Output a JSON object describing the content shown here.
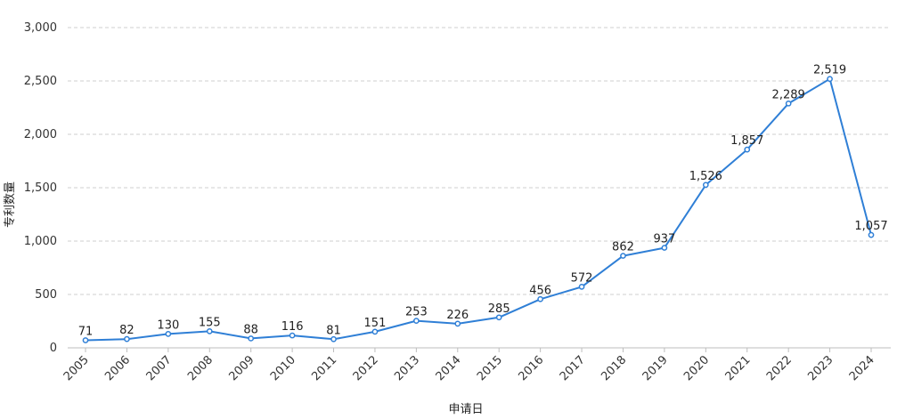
{
  "chart_data": {
    "type": "line",
    "title": "",
    "xlabel": "申请日",
    "ylabel": "专利数量",
    "ylim": [
      0,
      3000
    ],
    "yticks": [
      0,
      500,
      1000,
      1500,
      2000,
      2500,
      3000
    ],
    "ytick_labels": [
      "0",
      "500",
      "1,000",
      "1,500",
      "2,000",
      "2,500",
      "3,000"
    ],
    "grid": true,
    "x": [
      "2005",
      "2006",
      "2007",
      "2008",
      "2009",
      "2010",
      "2011",
      "2012",
      "2013",
      "2014",
      "2015",
      "2016",
      "2017",
      "2018",
      "2019",
      "2020",
      "2021",
      "2022",
      "2023",
      "2024"
    ],
    "series": [
      {
        "values": [
          71,
          82,
          130,
          155,
          88,
          116,
          81,
          151,
          253,
          226,
          285,
          456,
          572,
          862,
          937,
          1526,
          1857,
          2289,
          2519,
          1057
        ],
        "labels": [
          "71",
          "82",
          "130",
          "155",
          "88",
          "116",
          "81",
          "151",
          "253",
          "226",
          "285",
          "456",
          "572",
          "862",
          "937",
          "1,526",
          "1,857",
          "2,289",
          "2,519",
          "1,057"
        ],
        "color": "#2f7fd6"
      }
    ]
  }
}
